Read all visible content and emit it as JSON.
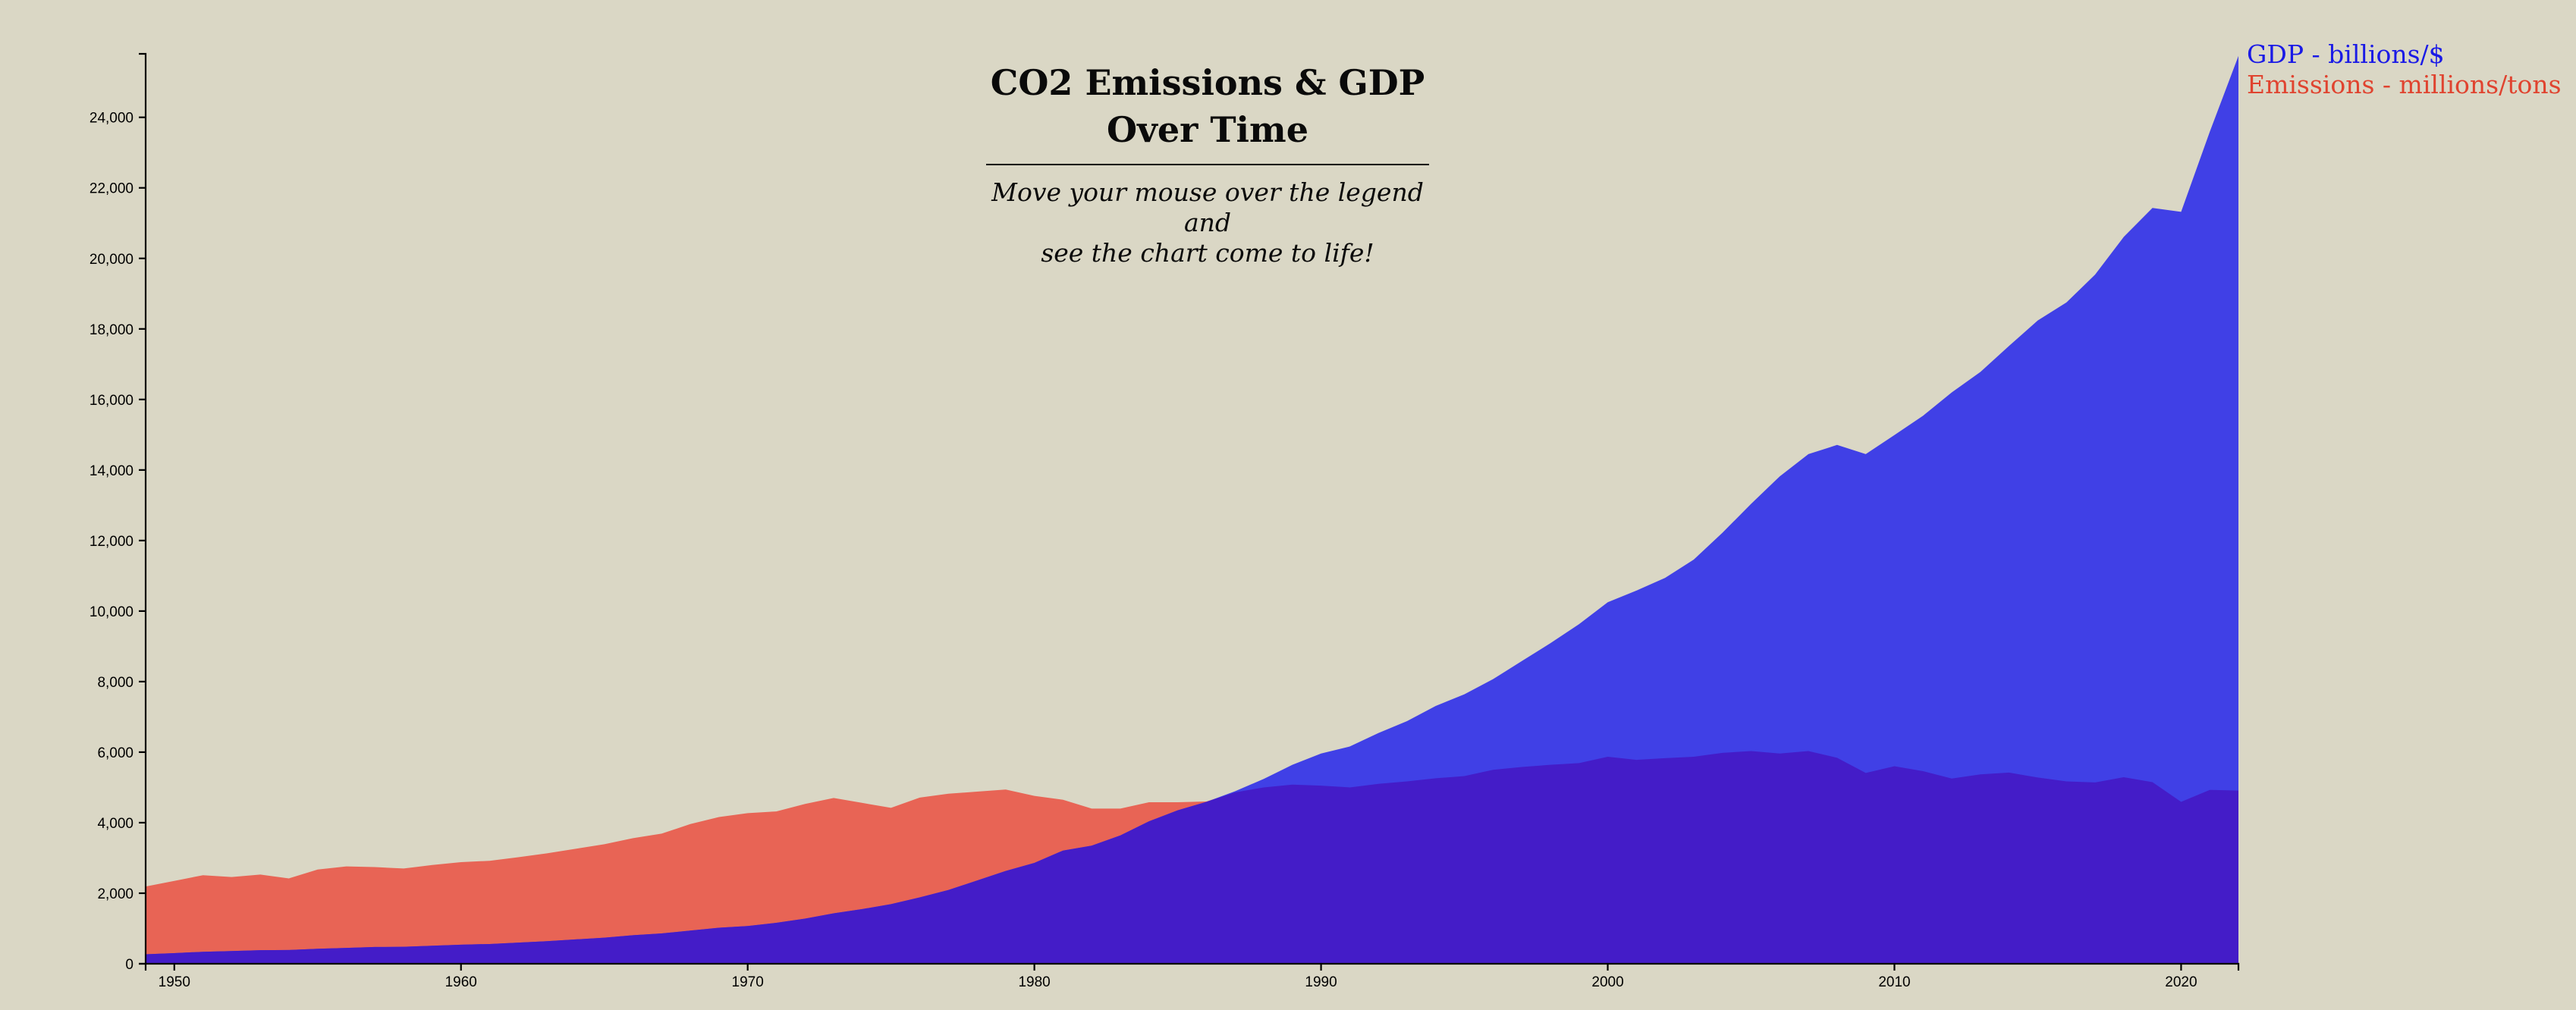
{
  "colors": {
    "background": "#dad7c5",
    "gdp": "#4040e6",
    "emissions": "#e86455",
    "overlap": "#441cc8",
    "gdp_legend_text": "#1a1ae6",
    "emissions_legend_text": "#e0432f"
  },
  "title": {
    "line1": "CO2 Emissions & GDP",
    "line2": "Over Time",
    "subtitle_line1": "Move your mouse over the legend and",
    "subtitle_line2": "see the chart come to life!"
  },
  "legend": {
    "gdp": "GDP - billions/$",
    "emissions": "Emissions - millions/tons"
  },
  "chart_data": {
    "type": "area",
    "title": "CO2 Emissions & GDP Over Time",
    "xlabel": "",
    "ylabel": "",
    "xlim": [
      1949,
      2022
    ],
    "ylim": [
      0,
      25800
    ],
    "x_ticks": [
      "1950",
      "1960",
      "1970",
      "1980",
      "1990",
      "2000",
      "2010",
      "2020"
    ],
    "y_ticks": [
      "0",
      "2,000",
      "4,000",
      "6,000",
      "8,000",
      "10,000",
      "12,000",
      "14,000",
      "16,000",
      "18,000",
      "20,000",
      "22,000",
      "24,000"
    ],
    "grid": false,
    "legend_position": "top-right",
    "series": [
      {
        "name": "GDP - billions/$",
        "x": [
          1949,
          1950,
          1951,
          1952,
          1953,
          1954,
          1955,
          1956,
          1957,
          1958,
          1959,
          1960,
          1961,
          1962,
          1963,
          1964,
          1965,
          1966,
          1967,
          1968,
          1969,
          1970,
          1971,
          1972,
          1973,
          1974,
          1975,
          1976,
          1977,
          1978,
          1979,
          1980,
          1981,
          1982,
          1983,
          1984,
          1985,
          1986,
          1987,
          1988,
          1989,
          1990,
          1991,
          1992,
          1993,
          1994,
          1995,
          1996,
          1997,
          1998,
          1999,
          2000,
          2001,
          2002,
          2003,
          2004,
          2005,
          2006,
          2007,
          2008,
          2009,
          2010,
          2011,
          2012,
          2013,
          2014,
          2015,
          2016,
          2017,
          2018,
          2019,
          2020,
          2021,
          2022
        ],
        "values": [
          270,
          300,
          340,
          360,
          385,
          390,
          425,
          450,
          475,
          480,
          510,
          540,
          560,
          600,
          640,
          690,
          740,
          810,
          860,
          940,
          1020,
          1070,
          1160,
          1280,
          1430,
          1550,
          1690,
          1880,
          2090,
          2360,
          2630,
          2860,
          3210,
          3350,
          3640,
          4040,
          4350,
          4590,
          4890,
          5240,
          5640,
          5960,
          6160,
          6540,
          6880,
          7310,
          7640,
          8070,
          8580,
          9090,
          9630,
          10250,
          10580,
          10940,
          11460,
          12220,
          13040,
          13820,
          14450,
          14710,
          14450,
          14990,
          15540,
          16200,
          16780,
          17520,
          18240,
          18750,
          19540,
          20610,
          21430,
          21320,
          23590,
          25740
        ]
      },
      {
        "name": "Emissions - millions/tons",
        "x": [
          1949,
          1950,
          1951,
          1952,
          1953,
          1954,
          1955,
          1956,
          1957,
          1958,
          1959,
          1960,
          1961,
          1962,
          1963,
          1964,
          1965,
          1966,
          1967,
          1968,
          1969,
          1970,
          1971,
          1972,
          1973,
          1974,
          1975,
          1976,
          1977,
          1978,
          1979,
          1980,
          1981,
          1982,
          1983,
          1984,
          1985,
          1986,
          1987,
          1988,
          1989,
          1990,
          1991,
          1992,
          1993,
          1994,
          1995,
          1996,
          1997,
          1998,
          1999,
          2000,
          2001,
          2002,
          2003,
          2004,
          2005,
          2006,
          2007,
          2008,
          2009,
          2010,
          2011,
          2012,
          2013,
          2014,
          2015,
          2016,
          2017,
          2018,
          2019,
          2020,
          2021,
          2022
        ],
        "values": [
          2190,
          2350,
          2510,
          2460,
          2530,
          2420,
          2670,
          2760,
          2740,
          2700,
          2800,
          2880,
          2920,
          3020,
          3130,
          3260,
          3390,
          3560,
          3690,
          3960,
          4160,
          4270,
          4320,
          4530,
          4700,
          4560,
          4420,
          4710,
          4820,
          4880,
          4940,
          4760,
          4650,
          4400,
          4400,
          4580,
          4580,
          4600,
          4860,
          5000,
          5080,
          5050,
          5000,
          5100,
          5170,
          5260,
          5320,
          5500,
          5580,
          5640,
          5690,
          5870,
          5780,
          5830,
          5870,
          5980,
          6030,
          5960,
          6030,
          5840,
          5410,
          5600,
          5460,
          5250,
          5370,
          5420,
          5280,
          5170,
          5140,
          5290,
          5150,
          4590,
          4930,
          4910
        ]
      }
    ]
  }
}
